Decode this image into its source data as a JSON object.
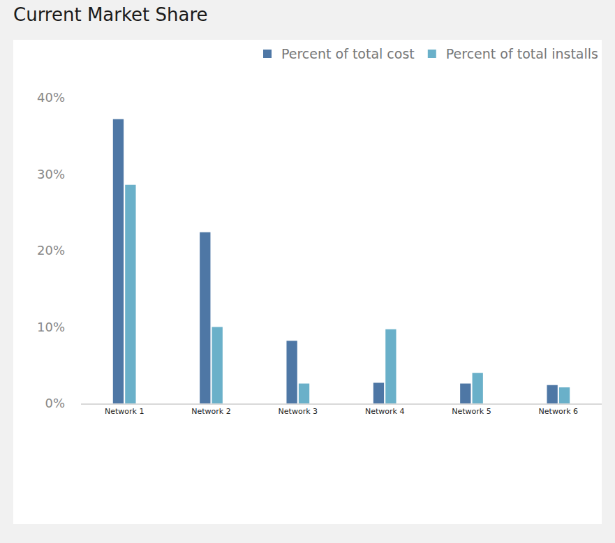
{
  "chart_data": {
    "type": "bar",
    "title": "Current Market Share",
    "categories": [
      "Network 1",
      "Network 2",
      "Network 3",
      "Network 4",
      "Network 5",
      "Network 6"
    ],
    "series": [
      {
        "name": "Percent of total cost",
        "color": "#4e77a5",
        "values": [
          37.2,
          22.4,
          8.2,
          2.7,
          2.6,
          2.4
        ]
      },
      {
        "name": "Percent of total installs",
        "color": "#6ab0c9",
        "values": [
          28.6,
          10.0,
          2.6,
          9.7,
          4.0,
          2.1
        ]
      }
    ],
    "ylim": [
      0,
      40
    ],
    "yticks": [
      {
        "value": 0,
        "label": "0%"
      },
      {
        "value": 10,
        "label": "10%"
      },
      {
        "value": 20,
        "label": "20%"
      },
      {
        "value": 30,
        "label": "30%"
      },
      {
        "value": 40,
        "label": "40%"
      }
    ],
    "grid": false,
    "legend": "top right"
  }
}
